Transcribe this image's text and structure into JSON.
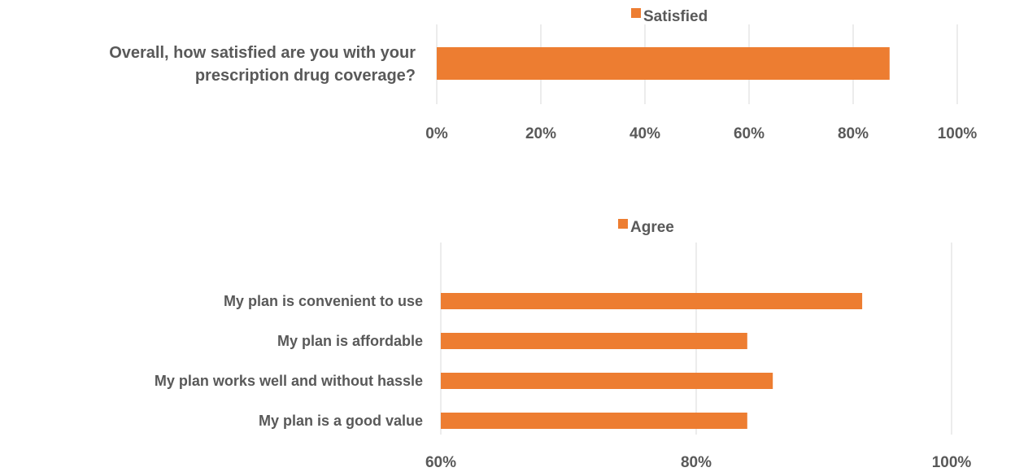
{
  "chart_data": [
    {
      "type": "bar",
      "orientation": "horizontal",
      "categories": [
        "Overall, how satisfied are you with your prescription drug coverage?"
      ],
      "series": [
        {
          "name": "Satisfied",
          "values": [
            87
          ]
        }
      ],
      "xlim": [
        0,
        100
      ],
      "xticks": [
        0,
        20,
        40,
        60,
        80,
        100
      ],
      "tick_labels": [
        "0%",
        "20%",
        "40%",
        "60%",
        "80%",
        "100%"
      ],
      "legend": "top",
      "grid": true,
      "color": "#ED7D31"
    },
    {
      "type": "bar",
      "orientation": "horizontal",
      "categories": [
        "My plan is convenient to use",
        "My plan is affordable",
        "My plan works well and without hassle",
        "My plan is a good value"
      ],
      "series": [
        {
          "name": "Agree",
          "values": [
            93,
            84,
            86,
            84
          ]
        }
      ],
      "xlim": [
        60,
        100
      ],
      "xticks": [
        60,
        80,
        100
      ],
      "tick_labels": [
        "60%",
        "80%",
        "100%"
      ],
      "legend": "top",
      "grid": true,
      "color": "#ED7D31"
    }
  ]
}
